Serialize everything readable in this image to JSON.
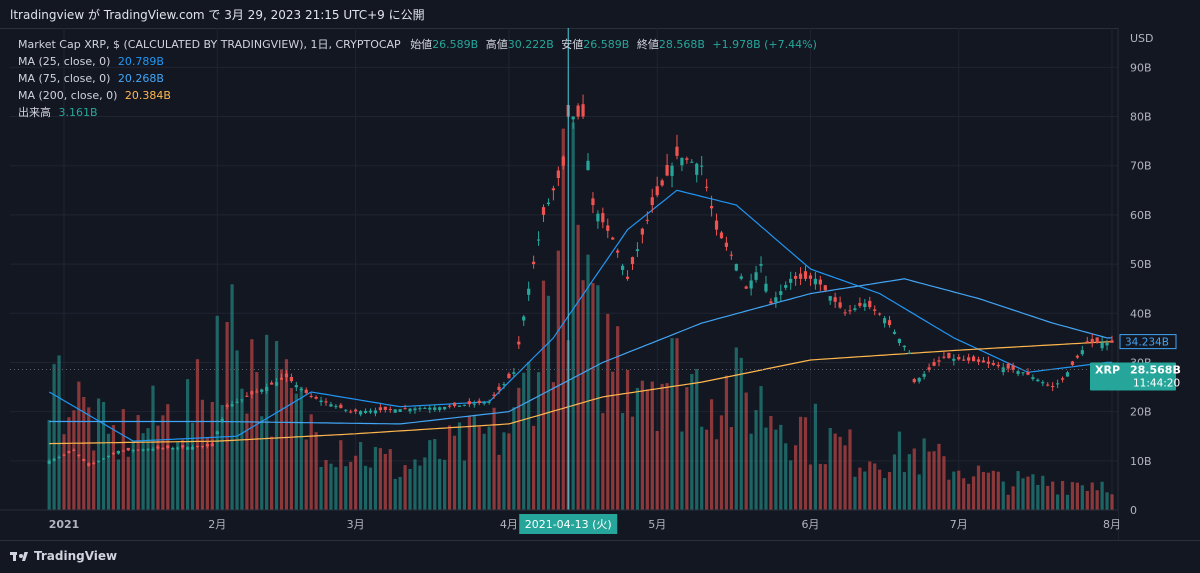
{
  "header": {
    "caption": "ltradingview が TradingView.com で 3月 29, 2023 21:15 UTC+9 に公開"
  },
  "legend": {
    "main": {
      "title": "Market Cap XRP, $ (CALCULATED BY TRADINGVIEW), 1日, CRYPTOCAP",
      "open_label": "始値",
      "open": "26.589B",
      "high_label": "高値",
      "high": "30.222B",
      "low_label": "安値",
      "low": "26.589B",
      "close_label": "終値",
      "close": "28.568B",
      "change": "+1.978B (+7.44%)"
    },
    "ma25": {
      "label": "MA (25, close, 0)",
      "value": "20.789B",
      "color": "#2196f3"
    },
    "ma75": {
      "label": "MA (75, close, 0)",
      "value": "20.268B",
      "color": "#42a5f5"
    },
    "ma200": {
      "label": "MA (200, close, 0)",
      "value": "20.384B",
      "color": "#ffb74d"
    },
    "volume": {
      "label": "出来高",
      "value": "3.161B",
      "color": "#26a69a"
    }
  },
  "footer": {
    "brand": "TradingView"
  },
  "colors": {
    "up": "#26a69a",
    "down": "#ef5350",
    "background": "#131722",
    "grid": "#1f2430",
    "crosshair": "#4dd0e1"
  },
  "chart_data": {
    "type": "candlestick",
    "title": "Market Cap XRP, $ (CALCULATED BY TRADINGVIEW), 1日, CRYPTOCAP",
    "y_unit": "USD",
    "y_ticks": [
      "0",
      "10B",
      "20B",
      "30B",
      "40B",
      "50B",
      "60B",
      "70B",
      "80B",
      "90B"
    ],
    "ylim": [
      0,
      98
    ],
    "x_ticks": [
      "2021",
      "2月",
      "3月",
      "4月",
      "5月",
      "6月",
      "7月",
      "8月"
    ],
    "crosshair_label": "2021-04-13 (火)",
    "last_price": {
      "label": "XRP",
      "value": "28.568B",
      "time": "11:44:20"
    },
    "ma_label": "34.234B",
    "close_anchors_B": [
      [
        "2020-12-29",
        10
      ],
      [
        "2021-01-03",
        12
      ],
      [
        "2021-01-06",
        9
      ],
      [
        "2021-01-12",
        12
      ],
      [
        "2021-01-20",
        12.5
      ],
      [
        "2021-01-31",
        13
      ],
      [
        "2021-02-01",
        16
      ],
      [
        "2021-02-03",
        21
      ],
      [
        "2021-02-15",
        27
      ],
      [
        "2021-02-20",
        23
      ],
      [
        "2021-02-28",
        20
      ],
      [
        "2021-03-10",
        20.5
      ],
      [
        "2021-03-20",
        21
      ],
      [
        "2021-03-28",
        22
      ],
      [
        "2021-04-02",
        28
      ],
      [
        "2021-04-05",
        45
      ],
      [
        "2021-04-08",
        60
      ],
      [
        "2021-04-12",
        70
      ],
      [
        "2021-04-13",
        80
      ],
      [
        "2021-04-14",
        80
      ],
      [
        "2021-04-16",
        80
      ],
      [
        "2021-04-18",
        62
      ],
      [
        "2021-04-22",
        55
      ],
      [
        "2021-04-25",
        47
      ],
      [
        "2021-04-30",
        62
      ],
      [
        "2021-05-05",
        72
      ],
      [
        "2021-05-10",
        70
      ],
      [
        "2021-05-13",
        57
      ],
      [
        "2021-05-17",
        50
      ],
      [
        "2021-05-19",
        45
      ],
      [
        "2021-05-22",
        50
      ],
      [
        "2021-05-24",
        42
      ],
      [
        "2021-05-28",
        47
      ],
      [
        "2021-06-02",
        47
      ],
      [
        "2021-06-08",
        40
      ],
      [
        "2021-06-12",
        42
      ],
      [
        "2021-06-16",
        39
      ],
      [
        "2021-06-21",
        32
      ],
      [
        "2021-06-22",
        26
      ],
      [
        "2021-06-28",
        31
      ],
      [
        "2021-07-06",
        30
      ],
      [
        "2021-07-14",
        28
      ],
      [
        "2021-07-20",
        25
      ],
      [
        "2021-07-22",
        26.5
      ],
      [
        "2021-07-25",
        31
      ],
      [
        "2021-07-27",
        34
      ],
      [
        "2021-07-31",
        34
      ]
    ],
    "series": [
      {
        "name": "MA (25, close, 0)",
        "anchors_B": [
          [
            "2020-12-29",
            24
          ],
          [
            "2021-01-15",
            14
          ],
          [
            "2021-02-05",
            15
          ],
          [
            "2021-02-20",
            24
          ],
          [
            "2021-03-10",
            21
          ],
          [
            "2021-03-28",
            22
          ],
          [
            "2021-04-10",
            35
          ],
          [
            "2021-04-25",
            57
          ],
          [
            "2021-05-05",
            65
          ],
          [
            "2021-05-17",
            62
          ],
          [
            "2021-06-01",
            49
          ],
          [
            "2021-06-15",
            44
          ],
          [
            "2021-06-30",
            35
          ],
          [
            "2021-07-15",
            28
          ],
          [
            "2021-07-31",
            30
          ]
        ]
      },
      {
        "name": "MA (75, close, 0)",
        "anchors_B": [
          [
            "2020-12-29",
            18
          ],
          [
            "2021-02-01",
            18
          ],
          [
            "2021-03-10",
            17.5
          ],
          [
            "2021-04-01",
            20
          ],
          [
            "2021-04-20",
            30
          ],
          [
            "2021-05-10",
            38
          ],
          [
            "2021-06-01",
            44
          ],
          [
            "2021-06-20",
            47
          ],
          [
            "2021-07-05",
            43
          ],
          [
            "2021-07-20",
            38
          ],
          [
            "2021-07-31",
            35
          ]
        ]
      },
      {
        "name": "MA (200, close, 0)",
        "anchors_B": [
          [
            "2020-12-29",
            13.5
          ],
          [
            "2021-02-01",
            14
          ],
          [
            "2021-03-01",
            15.5
          ],
          [
            "2021-04-01",
            17.5
          ],
          [
            "2021-04-20",
            23
          ],
          [
            "2021-05-10",
            26
          ],
          [
            "2021-06-01",
            30.5
          ],
          [
            "2021-07-01",
            32.5
          ],
          [
            "2021-07-31",
            34.2
          ]
        ]
      }
    ],
    "volume_anchors_B": [
      [
        "2020-12-29",
        10
      ],
      [
        "2021-01-10",
        5
      ],
      [
        "2021-01-31",
        8
      ],
      [
        "2021-02-01",
        14
      ],
      [
        "2021-02-20",
        6
      ],
      [
        "2021-03-10",
        3
      ],
      [
        "2021-04-02",
        6
      ],
      [
        "2021-04-10",
        16
      ],
      [
        "2021-04-13",
        22
      ],
      [
        "2021-04-18",
        12
      ],
      [
        "2021-05-10",
        9
      ],
      [
        "2021-05-20",
        8
      ],
      [
        "2021-06-10",
        4
      ],
      [
        "2021-06-22",
        4
      ],
      [
        "2021-07-10",
        2
      ],
      [
        "2021-07-31",
        2
      ]
    ],
    "volume_ylim": [
      0,
      35
    ]
  }
}
